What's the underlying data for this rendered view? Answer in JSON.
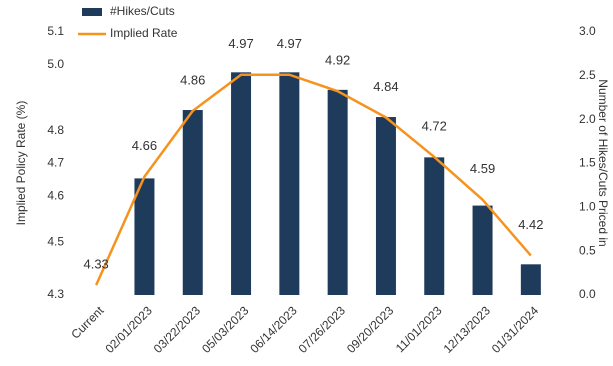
{
  "chart_data": {
    "type": "bar-line",
    "categories": [
      "Current",
      "02/01/2023",
      "03/22/2023",
      "05/03/2023",
      "06/14/2023",
      "07/26/2023",
      "09/20/2023",
      "11/01/2023",
      "12/13/2023",
      "01/31/2024"
    ],
    "series": [
      {
        "name": "#Hikes/Cuts",
        "type": "bar",
        "axis": "y2",
        "color": "#1f3b5c",
        "values": [
          0,
          1.33,
          2.11,
          2.54,
          2.54,
          2.34,
          2.03,
          1.57,
          1.02,
          0.35
        ]
      },
      {
        "name": "Implied Rate",
        "type": "line",
        "axis": "y",
        "color": "#f5931e",
        "values": [
          4.33,
          4.66,
          4.86,
          4.97,
          4.97,
          4.92,
          4.84,
          4.72,
          4.59,
          4.42
        ]
      }
    ],
    "ylabel": "Implied Policy Rate (%)",
    "y2label": "Number of Hikes/Cuts Priced in",
    "ylim": [
      4.3,
      5.1
    ],
    "yticks": [
      4.3,
      {
        "value": 4.46,
        "label": "4.5"
      },
      4.6,
      4.7,
      4.8,
      {
        "value": 5.0,
        "label": "5.0"
      },
      5.1
    ],
    "y2lim": [
      0,
      3
    ],
    "y2ticks": [
      {
        "value": 0,
        "label": "0.0"
      },
      0.5,
      {
        "value": 1,
        "label": "1.0"
      },
      1.5,
      {
        "value": 2,
        "label": "2.0"
      },
      2.5,
      {
        "value": 3,
        "label": "3.0"
      }
    ],
    "legend": "top-left",
    "grid": false
  }
}
